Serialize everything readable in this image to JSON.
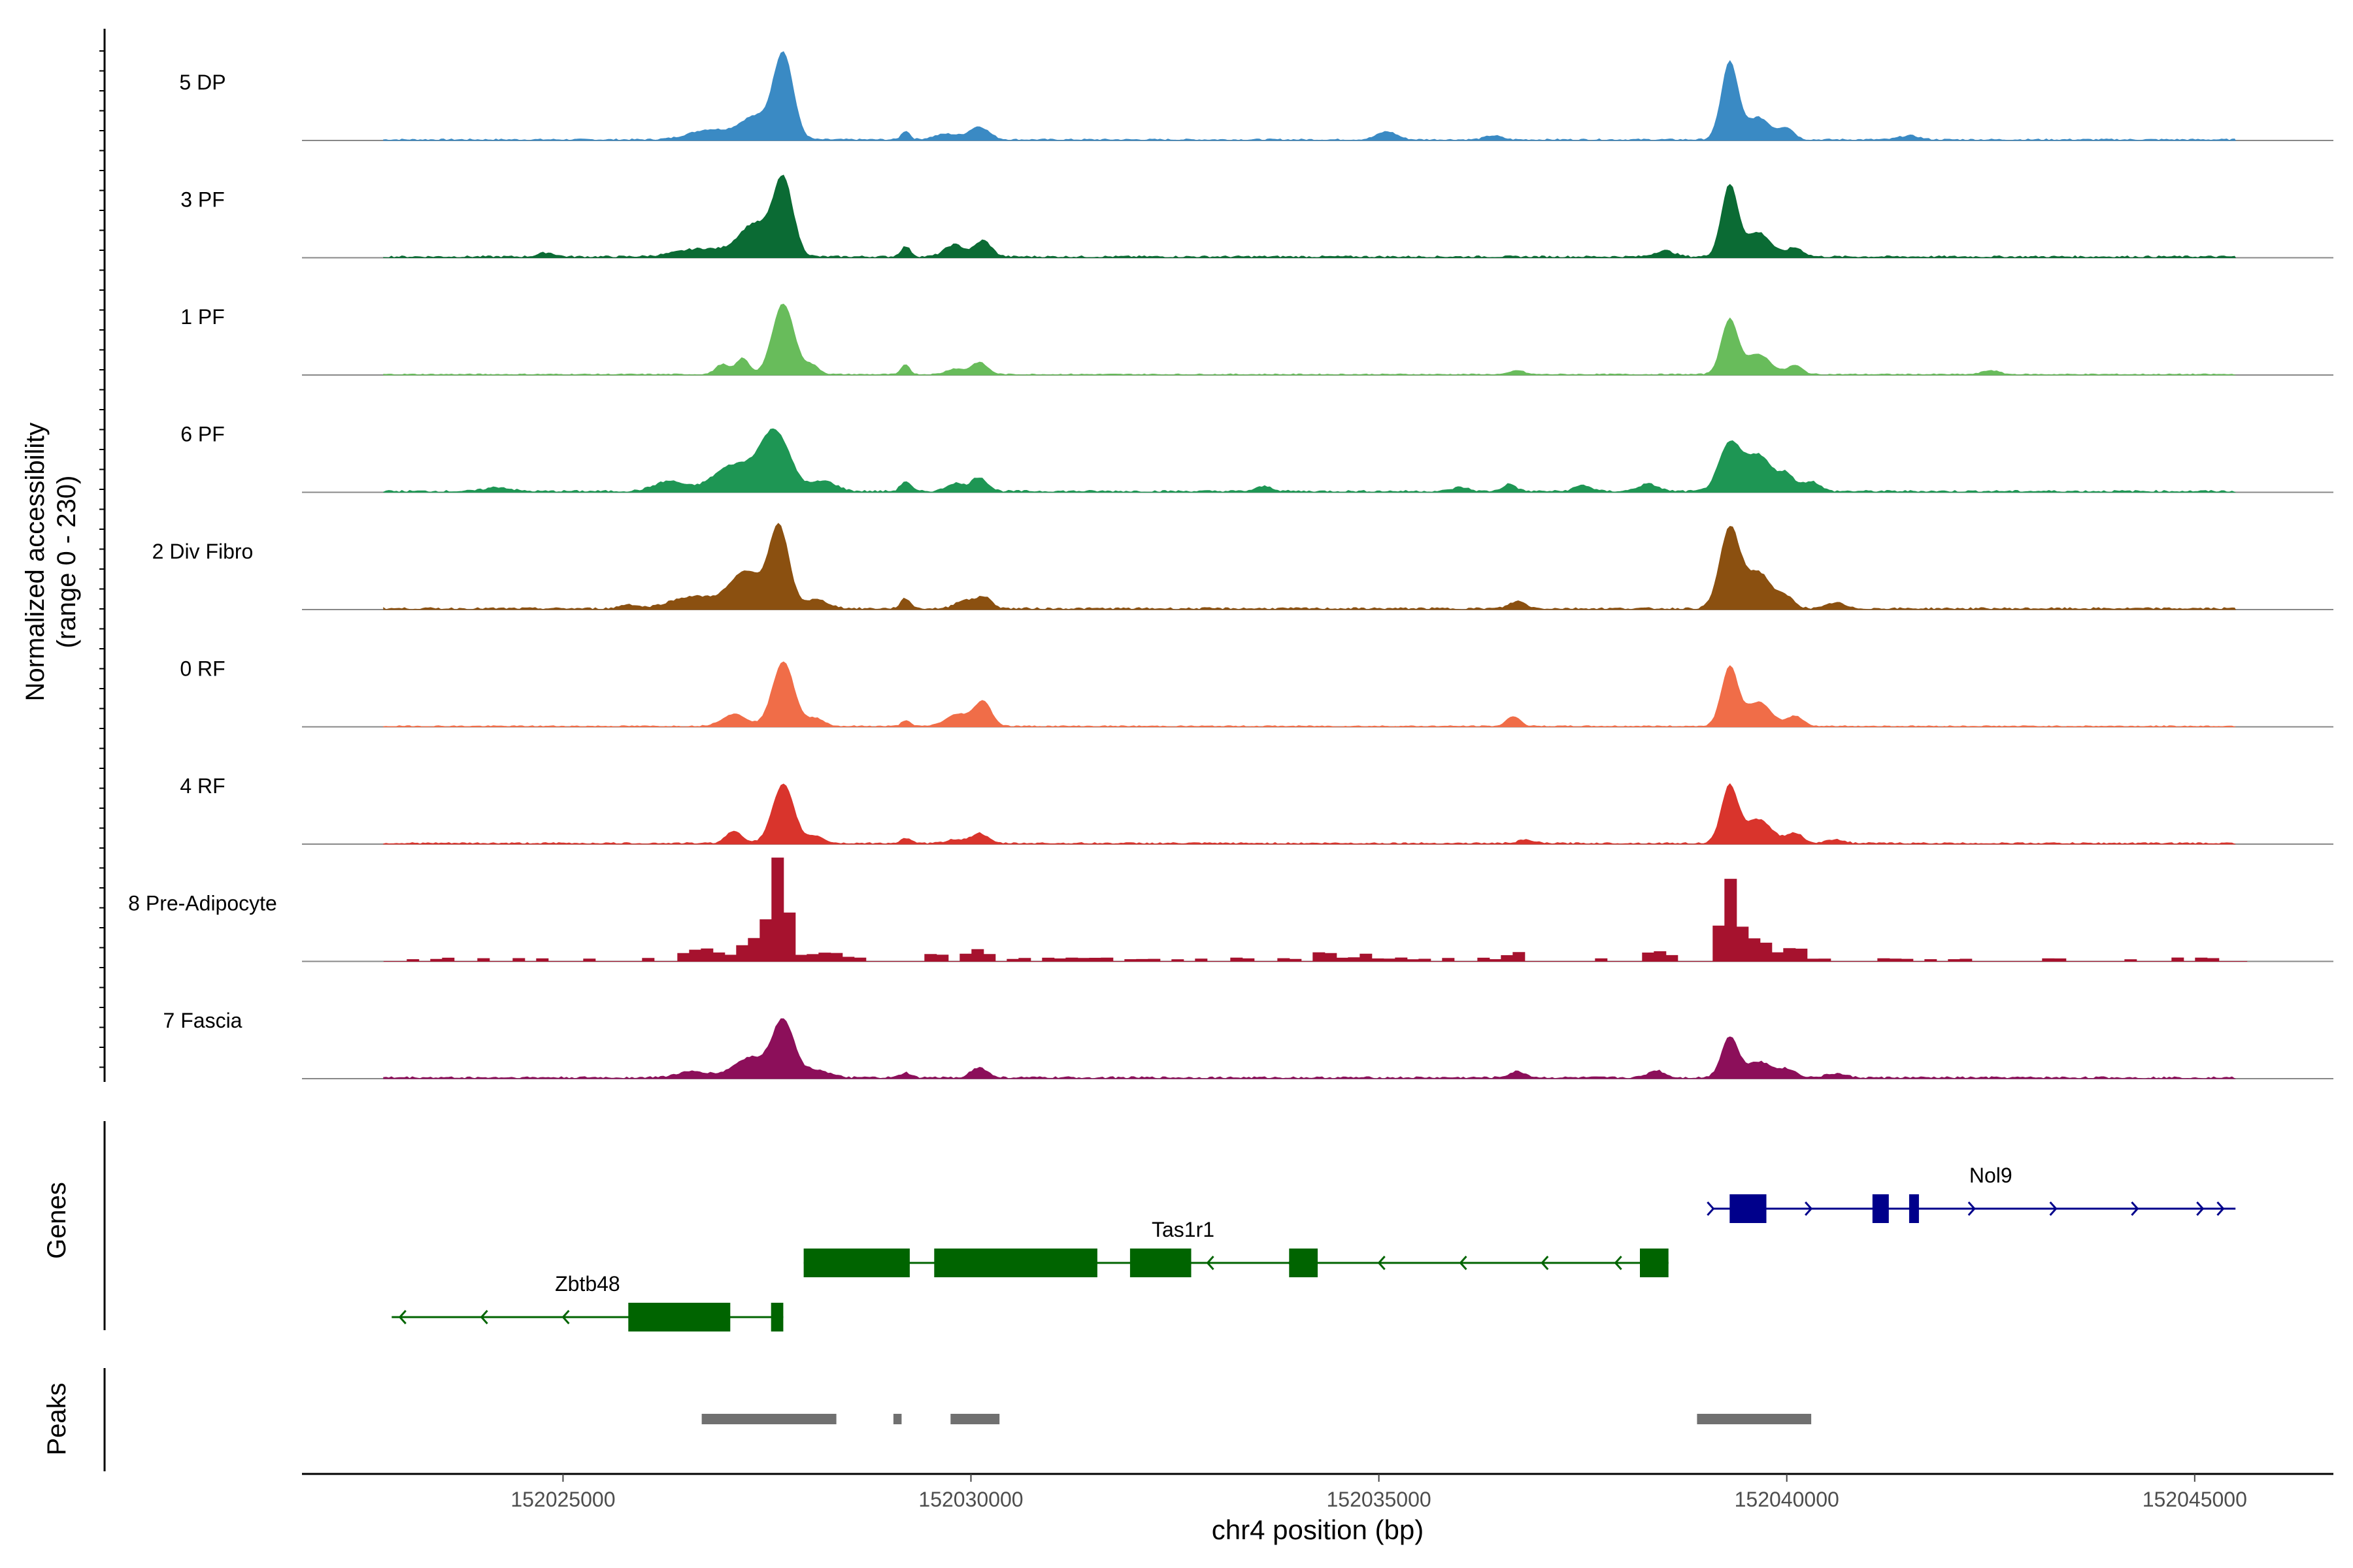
{
  "chart_data": {
    "type": "coverage",
    "chromosome": "chr4",
    "xlim": [
      152021800,
      152046700
    ],
    "xlabel": "chr4 position (bp)",
    "xticks": [
      152025000,
      152030000,
      152035000,
      152040000,
      152045000
    ],
    "xtick_labels": [
      "152025000",
      "152030000",
      "152035000",
      "152040000",
      "152045000"
    ],
    "ylabel_line1": "Normalized accessibility",
    "ylabel_line2": "(range 0 - 230)",
    "ylim": [
      0,
      230
    ],
    "track_span": [
      152022800,
      152045500
    ],
    "tracks": [
      {
        "name": "5 DP",
        "color": "#3a8ac4",
        "style": "smooth",
        "noise": 4,
        "peaks": [
          [
            152027700,
            210,
            120
          ],
          [
            152027350,
            55,
            180
          ],
          [
            152026800,
            25,
            250
          ],
          [
            152029200,
            22,
            50
          ],
          [
            152030100,
            32,
            120
          ],
          [
            152029700,
            14,
            150
          ],
          [
            152035100,
            20,
            120
          ],
          [
            152036400,
            10,
            100
          ],
          [
            152039300,
            190,
            100
          ],
          [
            152039650,
            55,
            150
          ],
          [
            152040000,
            28,
            90
          ],
          [
            152041500,
            10,
            120
          ]
        ]
      },
      {
        "name": "3 PF",
        "color": "#0b6b34",
        "style": "smooth",
        "noise": 5,
        "peaks": [
          [
            152027700,
            185,
            120
          ],
          [
            152027350,
            80,
            190
          ],
          [
            152026700,
            20,
            300
          ],
          [
            152029200,
            25,
            60
          ],
          [
            152029800,
            30,
            120
          ],
          [
            152030150,
            40,
            100
          ],
          [
            152024800,
            10,
            100
          ],
          [
            152038500,
            15,
            120
          ],
          [
            152039300,
            175,
            100
          ],
          [
            152039650,
            60,
            150
          ],
          [
            152040100,
            22,
            100
          ]
        ]
      },
      {
        "name": "1 PF",
        "color": "#68bc5b",
        "style": "smooth",
        "noise": 3,
        "peaks": [
          [
            152027700,
            175,
            130
          ],
          [
            152027200,
            40,
            80
          ],
          [
            152026950,
            25,
            80
          ],
          [
            152028050,
            22,
            90
          ],
          [
            152029200,
            25,
            50
          ],
          [
            152030100,
            30,
            100
          ],
          [
            152029800,
            14,
            100
          ],
          [
            152039300,
            135,
            100
          ],
          [
            152039650,
            50,
            150
          ],
          [
            152040100,
            22,
            90
          ],
          [
            152036700,
            10,
            80
          ],
          [
            152042500,
            10,
            100
          ]
        ]
      },
      {
        "name": "6 PF",
        "color": "#1e9654",
        "style": "smooth",
        "noise": 5,
        "peaks": [
          [
            152027600,
            145,
            180
          ],
          [
            152027100,
            65,
            250
          ],
          [
            152026300,
            25,
            180
          ],
          [
            152028200,
            25,
            150
          ],
          [
            152029200,
            25,
            60
          ],
          [
            152029800,
            20,
            100
          ],
          [
            152030100,
            35,
            100
          ],
          [
            152024200,
            10,
            150
          ],
          [
            152033600,
            12,
            100
          ],
          [
            152036000,
            10,
            100
          ],
          [
            152036600,
            18,
            80
          ],
          [
            152037500,
            15,
            100
          ],
          [
            152038300,
            18,
            120
          ],
          [
            152039300,
            115,
            130
          ],
          [
            152039650,
            90,
            160
          ],
          [
            152040000,
            40,
            100
          ],
          [
            152040300,
            25,
            100
          ]
        ]
      },
      {
        "name": "2 Div Fibro",
        "color": "#8b5010",
        "style": "smooth",
        "noise": 5,
        "peaks": [
          [
            152027650,
            195,
            120
          ],
          [
            152027250,
            90,
            200
          ],
          [
            152026600,
            30,
            280
          ],
          [
            152028100,
            22,
            150
          ],
          [
            152029200,
            25,
            60
          ],
          [
            152029900,
            20,
            100
          ],
          [
            152030150,
            30,
            100
          ],
          [
            152025800,
            10,
            100
          ],
          [
            152036700,
            18,
            100
          ],
          [
            152039300,
            195,
            120
          ],
          [
            152039650,
            90,
            160
          ],
          [
            152040000,
            25,
            100
          ],
          [
            152040600,
            15,
            100
          ]
        ]
      },
      {
        "name": "0 RF",
        "color": "#f06d48",
        "style": "smooth",
        "noise": 3,
        "peaks": [
          [
            152027700,
            160,
            130
          ],
          [
            152027100,
            30,
            150
          ],
          [
            152028100,
            20,
            100
          ],
          [
            152029200,
            15,
            50
          ],
          [
            152029850,
            30,
            150
          ],
          [
            152030150,
            60,
            100
          ],
          [
            152036650,
            25,
            80
          ],
          [
            152039300,
            145,
            100
          ],
          [
            152039650,
            60,
            150
          ],
          [
            152040100,
            25,
            100
          ]
        ]
      },
      {
        "name": "4 RF",
        "color": "#d9342c",
        "style": "smooth",
        "noise": 4,
        "peaks": [
          [
            152027700,
            145,
            130
          ],
          [
            152027100,
            30,
            100
          ],
          [
            152028100,
            18,
            100
          ],
          [
            152029200,
            12,
            60
          ],
          [
            152030100,
            25,
            100
          ],
          [
            152029800,
            10,
            100
          ],
          [
            152036800,
            8,
            100
          ],
          [
            152039300,
            140,
            100
          ],
          [
            152039650,
            60,
            160
          ],
          [
            152040100,
            25,
            100
          ],
          [
            152040600,
            10,
            100
          ]
        ]
      },
      {
        "name": "8 Pre-Adipocyte",
        "color": "#a6122e",
        "style": "blocky",
        "noise": 0,
        "peaks": [
          [
            152027650,
            250,
            100
          ],
          [
            152027350,
            50,
            150
          ],
          [
            152026700,
            30,
            200
          ],
          [
            152028200,
            20,
            200
          ],
          [
            152030100,
            28,
            120
          ],
          [
            152029600,
            15,
            120
          ],
          [
            152034300,
            22,
            100
          ],
          [
            152034800,
            12,
            100
          ],
          [
            152036700,
            18,
            100
          ],
          [
            152038400,
            25,
            120
          ],
          [
            152039300,
            200,
            100
          ],
          [
            152039650,
            50,
            150
          ],
          [
            152040100,
            35,
            100
          ]
        ]
      },
      {
        "name": "7 Fascia",
        "color": "#8c0f5a",
        "style": "smooth",
        "noise": 5,
        "peaks": [
          [
            152027700,
            140,
            130
          ],
          [
            152027300,
            50,
            200
          ],
          [
            152026600,
            15,
            200
          ],
          [
            152028100,
            20,
            150
          ],
          [
            152029200,
            12,
            60
          ],
          [
            152030100,
            25,
            100
          ],
          [
            152036700,
            15,
            100
          ],
          [
            152038400,
            18,
            100
          ],
          [
            152039300,
            100,
            100
          ],
          [
            152039650,
            40,
            150
          ],
          [
            152040000,
            20,
            120
          ],
          [
            152040600,
            10,
            120
          ]
        ]
      }
    ],
    "genes_panel_label": "Genes",
    "genes": [
      {
        "name": "Zbtb48",
        "strand": "-",
        "color": "#006400",
        "row": 3,
        "start": 152022900,
        "end": 152027700,
        "label_pos": 152025300,
        "exons": [
          [
            152025800,
            152027050
          ],
          [
            152027550,
            152027700
          ]
        ],
        "arrows": [
          152023000,
          152024000,
          152025000
        ]
      },
      {
        "name": "Tas1r1",
        "strand": "-",
        "color": "#006400",
        "row": 2,
        "start": 152027950,
        "end": 152038550,
        "label_pos": 152032600,
        "exons": [
          [
            152027950,
            152029250
          ],
          [
            152029550,
            152031550
          ],
          [
            152031950,
            152032700
          ],
          [
            152033900,
            152034250
          ],
          [
            152038200,
            152038550
          ]
        ],
        "arrows": [
          152032900,
          152033900,
          152035000,
          152036000,
          152037000,
          152037900
        ]
      },
      {
        "name": "Nol9",
        "strand": "+",
        "color": "#00008b",
        "row": 1,
        "start": 152039100,
        "end": 152045500,
        "label_pos": 152042500,
        "exons": [
          [
            152039300,
            152039750
          ],
          [
            152041050,
            152041250
          ],
          [
            152041500,
            152041620
          ]
        ],
        "arrows": [
          152039100,
          152040300,
          152042300,
          152043300,
          152044300,
          152045100,
          152045350
        ]
      }
    ],
    "peaks_panel_label": "Peaks",
    "peak_regions": [
      [
        152026700,
        152028350
      ],
      [
        152029050,
        152029150
      ],
      [
        152029750,
        152030350
      ],
      [
        152038900,
        152040300
      ]
    ]
  }
}
